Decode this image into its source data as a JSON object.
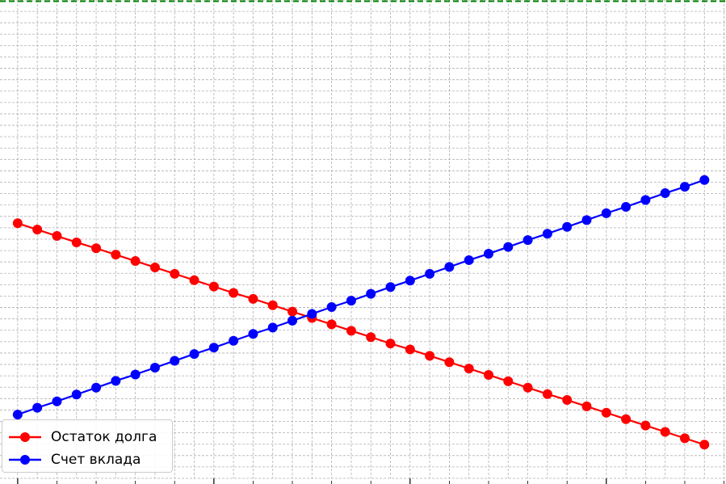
{
  "chart_data": {
    "type": "line",
    "x": [
      1,
      2,
      3,
      4,
      5,
      6,
      7,
      8,
      9,
      10,
      11,
      12,
      13,
      14,
      15,
      16,
      17,
      18,
      19,
      20,
      21,
      22,
      23,
      24,
      25,
      26,
      27,
      28,
      29,
      30,
      31,
      32,
      33,
      34,
      35,
      36
    ],
    "series": [
      {
        "name": "Остаток долга",
        "color": "#ff0000",
        "values": [
          76.0,
          74.6,
          73.2,
          71.8,
          70.5,
          69.1,
          67.7,
          66.3,
          64.9,
          63.5,
          62.1,
          60.7,
          59.4,
          58.0,
          56.6,
          55.2,
          53.8,
          52.4,
          51.0,
          49.6,
          48.3,
          46.9,
          45.5,
          44.1,
          42.7,
          41.3,
          39.9,
          38.5,
          37.2,
          35.8,
          34.4,
          33.0,
          31.6,
          30.2,
          28.8,
          27.4
        ]
      },
      {
        "name": "Счет вклада",
        "color": "#0000ff",
        "values": [
          34.0,
          35.5,
          36.9,
          38.4,
          39.9,
          41.4,
          42.8,
          44.3,
          45.8,
          47.3,
          48.7,
          50.2,
          51.7,
          53.1,
          54.6,
          56.1,
          57.6,
          59.0,
          60.5,
          62.0,
          63.4,
          64.9,
          66.4,
          67.9,
          69.3,
          70.8,
          72.3,
          73.7,
          75.2,
          76.7,
          78.2,
          79.6,
          81.1,
          82.6,
          84.0,
          85.5
        ]
      }
    ],
    "reference_lines": [
      {
        "orientation": "horizontal",
        "value": 125,
        "color": "#008000",
        "style": "dashed"
      }
    ],
    "xlim": [
      0.1,
      37.1
    ],
    "ylim": [
      20,
      125
    ],
    "grid": true,
    "legend_placement": "lower-left",
    "xticks_major": [
      1,
      11,
      21,
      31
    ],
    "xticks_minor": [
      3,
      5,
      7,
      9,
      13,
      15,
      17,
      19,
      23,
      25,
      27,
      29,
      33,
      35,
      37
    ]
  }
}
